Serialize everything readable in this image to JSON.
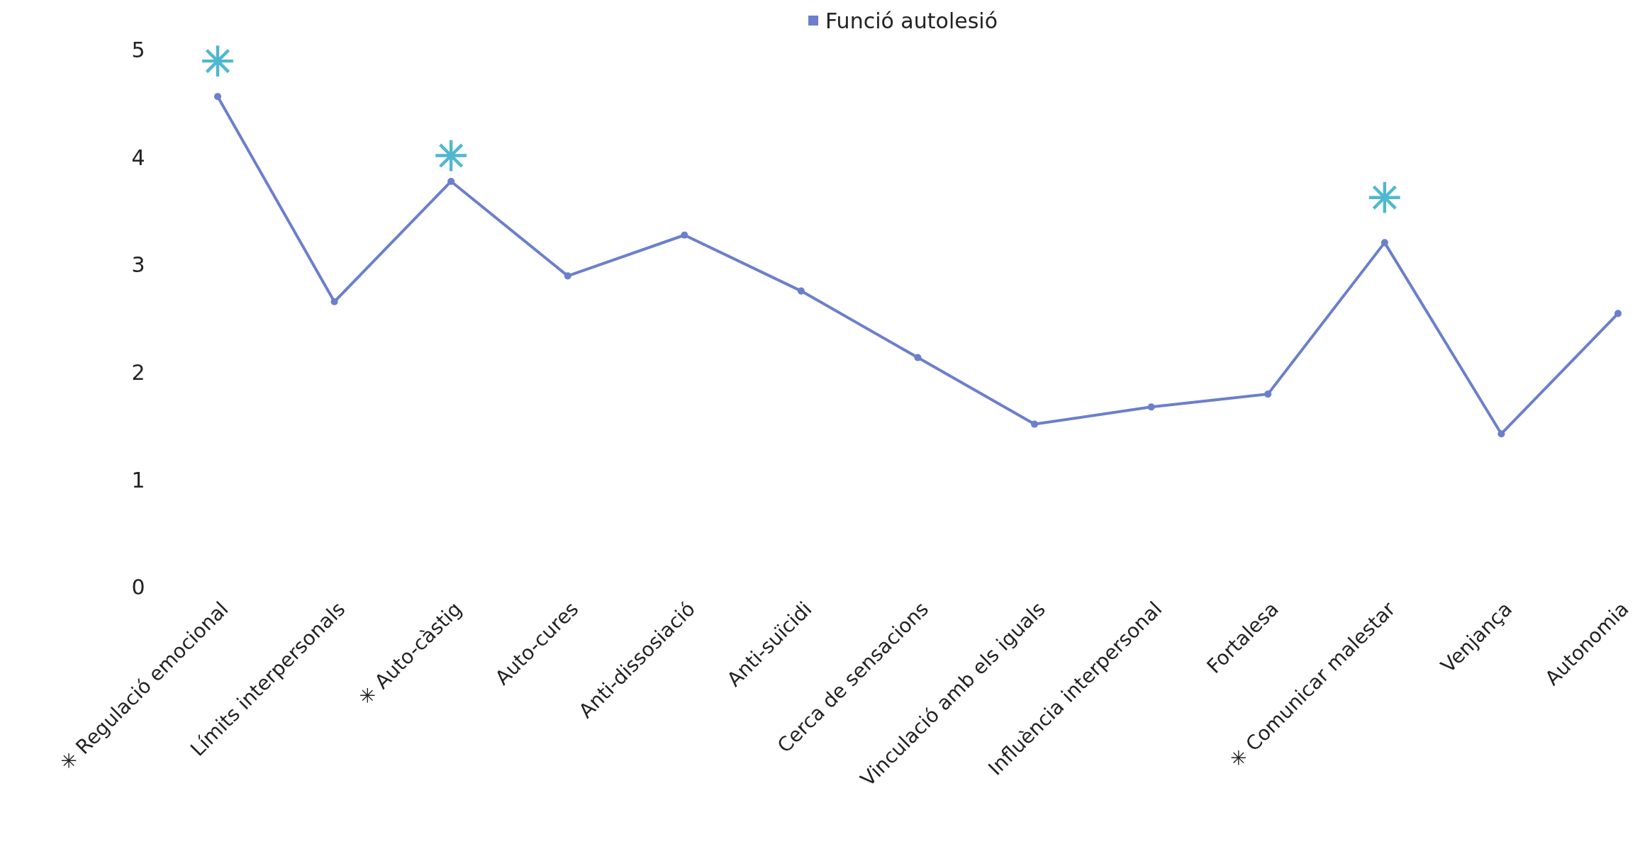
{
  "chart_data": {
    "type": "line",
    "categories": [
      "✳ Regulació emocional",
      "Límits interpersonals",
      "✳ Auto-càstig",
      "Auto-cures",
      "Anti-dissosiació",
      "Anti-suïcidi",
      "Cerca de sensacions",
      "Vinculació amb els iguals",
      "Influència interpersonal",
      "Fortalesa",
      "✳ Comunicar malestar",
      "Venjança",
      "Autonomia"
    ],
    "series": [
      {
        "name": "Funció autolesió",
        "color": "#6b7fcc",
        "values": [
          4.57,
          2.66,
          3.78,
          2.9,
          3.28,
          2.76,
          2.14,
          1.52,
          1.68,
          1.8,
          3.21,
          1.43,
          2.55
        ]
      },
      {
        "type": "scatter",
        "marker": "star",
        "color": "#4fb8cf",
        "values": [
          4.9,
          null,
          4.02,
          null,
          null,
          null,
          null,
          null,
          null,
          null,
          3.63,
          null,
          null
        ]
      }
    ],
    "ylim": [
      0,
      5
    ],
    "yticks": [
      0,
      1,
      2,
      3,
      4,
      5
    ],
    "grid": false,
    "legend": "top",
    "marker": "circle",
    "line_style": "solid"
  }
}
